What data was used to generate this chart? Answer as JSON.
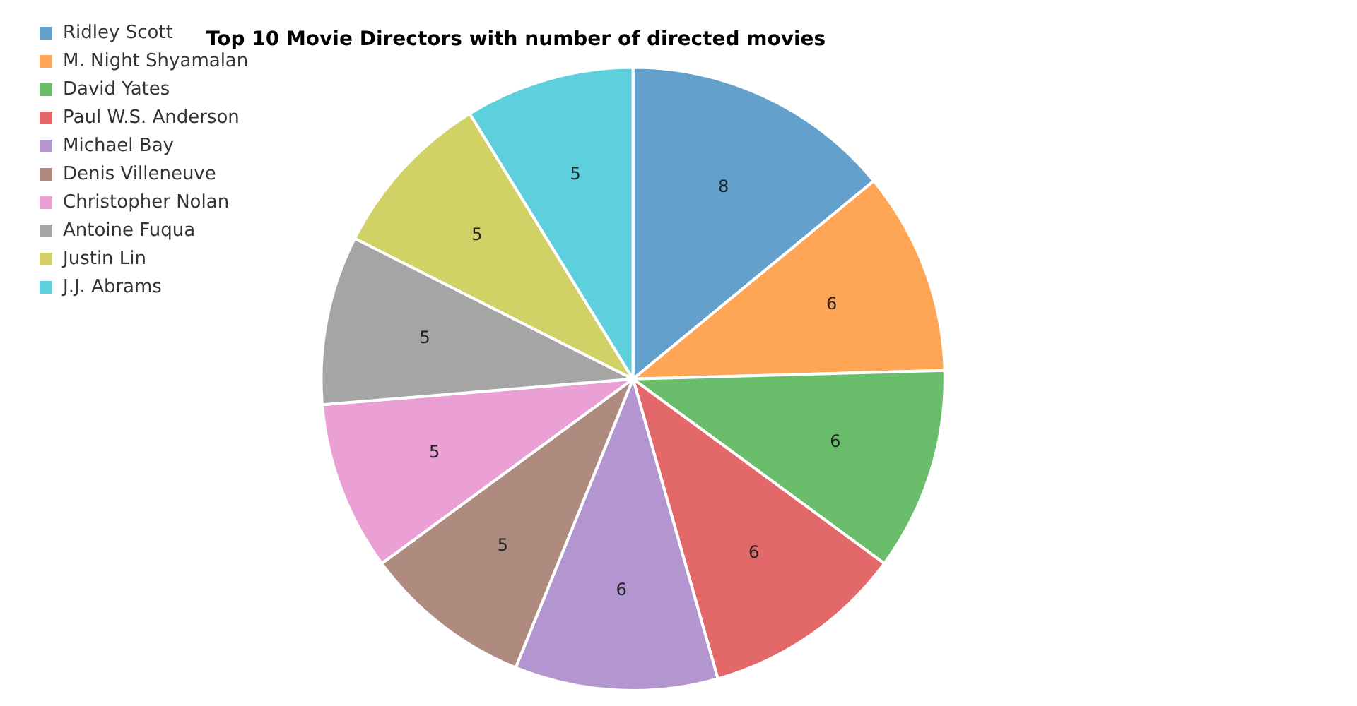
{
  "chart_data": {
    "type": "pie",
    "title": "Top 10 Movie Directors with number of directed movies",
    "categories": [
      "Ridley Scott",
      "M. Night Shyamalan",
      "David Yates",
      "Paul W.S. Anderson",
      "Michael Bay",
      "Denis Villeneuve",
      "Christopher Nolan",
      "Antoine Fuqua",
      "Justin Lin",
      "J.J. Abrams"
    ],
    "values": [
      8,
      6,
      6,
      6,
      6,
      5,
      5,
      5,
      5,
      5
    ],
    "colors": [
      "#63a1cc",
      "#ffa556",
      "#6abd6a",
      "#e36869",
      "#b396d0",
      "#ae8a7f",
      "#eaa0d5",
      "#a5a5a5",
      "#d1d166",
      "#5ecfdd"
    ],
    "data_labels": true,
    "legend": "top left"
  }
}
